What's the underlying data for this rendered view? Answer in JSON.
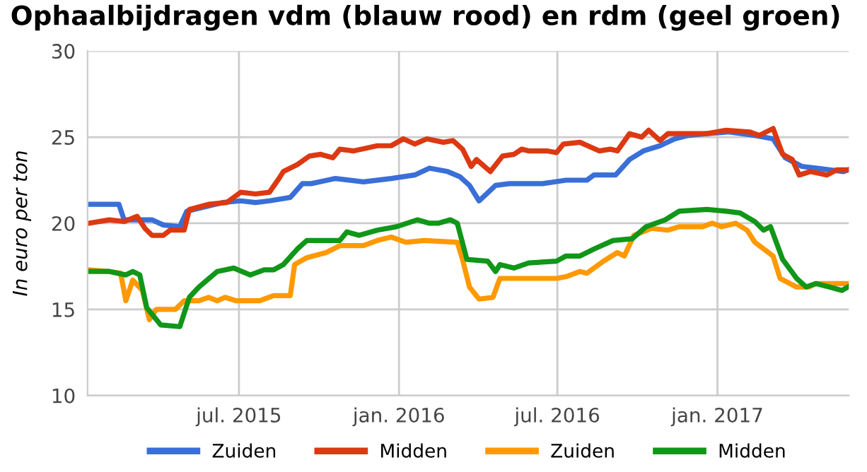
{
  "chart_data": {
    "type": "line",
    "title": "Ophaalbijdragen vdm (blauw rood) en rdm (geel groen)",
    "ylabel": "In euro per ton",
    "xlim": [
      "2015-01-08",
      "2017-06-01"
    ],
    "xticks": [
      {
        "value": "2015-07-01",
        "label": "jul. 2015"
      },
      {
        "value": "2016-01-01",
        "label": "jan. 2016"
      },
      {
        "value": "2016-07-01",
        "label": "jul. 2016"
      },
      {
        "value": "2017-01-01",
        "label": "jan. 2017"
      }
    ],
    "ylim": [
      10,
      30
    ],
    "yticks": [
      10,
      15,
      20,
      25,
      30
    ],
    "grid": true,
    "legend": "bottom",
    "marker": "none",
    "line_style": "solid",
    "series": [
      {
        "name": "Zuiden",
        "color": "#3a6fd8",
        "x": [
          "2015-01-09",
          "2015-02-02",
          "2015-02-13",
          "2015-02-19",
          "2015-03-06",
          "2015-03-23",
          "2015-04-05",
          "2015-04-24",
          "2015-05-02",
          "2015-05-27",
          "2015-06-12",
          "2015-07-03",
          "2015-07-20",
          "2015-08-05",
          "2015-08-29",
          "2015-09-12",
          "2015-09-22",
          "2015-10-20",
          "2015-11-21",
          "2015-12-23",
          "2016-01-19",
          "2016-02-05",
          "2016-02-26",
          "2016-03-11",
          "2016-03-22",
          "2016-04-02",
          "2016-04-21",
          "2016-05-07",
          "2016-05-18",
          "2016-06-14",
          "2016-07-11",
          "2016-08-04",
          "2016-08-12",
          "2016-09-06",
          "2016-09-22",
          "2016-10-08",
          "2016-10-27",
          "2016-11-13",
          "2016-11-29",
          "2016-12-20",
          "2017-01-14",
          "2017-02-13",
          "2017-03-06",
          "2017-03-20",
          "2017-04-08",
          "2017-04-24",
          "2017-05-10",
          "2017-05-26",
          "2017-05-31"
        ],
        "values": [
          21.1,
          21.1,
          21.1,
          20.2,
          20.2,
          20.2,
          19.9,
          19.8,
          20.7,
          21.0,
          21.2,
          21.3,
          21.2,
          21.3,
          21.5,
          22.3,
          22.3,
          22.6,
          22.4,
          22.6,
          22.8,
          23.2,
          23.0,
          22.7,
          22.2,
          21.3,
          22.2,
          22.3,
          22.3,
          22.3,
          22.5,
          22.5,
          22.8,
          22.8,
          23.7,
          24.2,
          24.5,
          24.9,
          25.1,
          25.2,
          25.3,
          25.1,
          24.9,
          23.8,
          23.3,
          23.2,
          23.1,
          23.0,
          23.1
        ]
      },
      {
        "name": "Midden",
        "color": "#dc3912",
        "x": [
          "2015-01-09",
          "2015-02-02",
          "2015-02-19",
          "2015-03-06",
          "2015-03-15",
          "2015-03-23",
          "2015-04-05",
          "2015-04-13",
          "2015-04-29",
          "2015-05-05",
          "2015-05-27",
          "2015-06-17",
          "2015-07-03",
          "2015-07-20",
          "2015-08-05",
          "2015-08-16",
          "2015-08-21",
          "2015-09-06",
          "2015-09-20",
          "2015-10-03",
          "2015-10-17",
          "2015-10-25",
          "2015-11-10",
          "2015-12-07",
          "2015-12-23",
          "2016-01-06",
          "2016-01-19",
          "2016-02-02",
          "2016-02-21",
          "2016-03-03",
          "2016-03-14",
          "2016-03-24",
          "2016-03-30",
          "2016-04-15",
          "2016-04-29",
          "2016-05-12",
          "2016-05-21",
          "2016-05-29",
          "2016-06-19",
          "2016-06-30",
          "2016-07-08",
          "2016-07-27",
          "2016-08-18",
          "2016-08-31",
          "2016-09-08",
          "2016-09-22",
          "2016-10-06",
          "2016-10-14",
          "2016-10-27",
          "2016-11-05",
          "2016-12-20",
          "2017-01-11",
          "2017-02-07",
          "2017-02-18",
          "2017-03-06",
          "2017-03-17",
          "2017-03-28",
          "2017-04-05",
          "2017-04-18",
          "2017-05-07",
          "2017-05-18",
          "2017-05-31"
        ],
        "values": [
          20.0,
          20.2,
          20.1,
          20.4,
          19.7,
          19.3,
          19.3,
          19.6,
          19.6,
          20.8,
          21.1,
          21.2,
          21.8,
          21.7,
          21.8,
          22.6,
          23.0,
          23.4,
          23.9,
          24.0,
          23.8,
          24.3,
          24.2,
          24.5,
          24.5,
          24.9,
          24.6,
          24.9,
          24.7,
          24.8,
          24.3,
          23.3,
          23.7,
          23.0,
          23.9,
          24.0,
          24.3,
          24.2,
          24.2,
          24.1,
          24.6,
          24.7,
          24.2,
          24.3,
          24.2,
          25.2,
          25.0,
          25.4,
          24.8,
          25.2,
          25.2,
          25.4,
          25.3,
          25.1,
          25.5,
          24.0,
          23.7,
          22.8,
          23.0,
          22.8,
          23.1,
          23.1
        ]
      },
      {
        "name": "Zuiden",
        "color": "#ff9900",
        "x": [
          "2015-01-09",
          "2015-02-02",
          "2015-02-15",
          "2015-02-21",
          "2015-03-01",
          "2015-03-12",
          "2015-03-20",
          "2015-03-28",
          "2015-04-19",
          "2015-04-29",
          "2015-05-16",
          "2015-05-27",
          "2015-06-06",
          "2015-06-15",
          "2015-06-28",
          "2015-07-25",
          "2015-07-30",
          "2015-08-10",
          "2015-08-29",
          "2015-09-03",
          "2015-09-17",
          "2015-10-09",
          "2015-10-25",
          "2015-11-21",
          "2015-12-07",
          "2015-12-23",
          "2016-01-09",
          "2016-01-30",
          "2016-03-08",
          "2016-03-14",
          "2016-03-22",
          "2016-04-02",
          "2016-04-18",
          "2016-04-26",
          "2016-05-18",
          "2016-06-30",
          "2016-07-11",
          "2016-07-27",
          "2016-08-04",
          "2016-08-23",
          "2016-09-08",
          "2016-09-16",
          "2016-09-27",
          "2016-10-17",
          "2016-11-05",
          "2016-11-18",
          "2016-12-15",
          "2016-12-26",
          "2017-01-06",
          "2017-01-22",
          "2017-02-04",
          "2017-02-13",
          "2017-03-06",
          "2017-03-14",
          "2017-04-02",
          "2017-04-16",
          "2017-04-24",
          "2017-05-31"
        ],
        "values": [
          17.3,
          17.2,
          17.1,
          15.5,
          16.7,
          16.1,
          14.4,
          15.0,
          15.0,
          15.5,
          15.5,
          15.7,
          15.5,
          15.7,
          15.5,
          15.5,
          15.6,
          15.8,
          15.8,
          17.6,
          18.0,
          18.3,
          18.7,
          18.7,
          19.0,
          19.2,
          18.9,
          19.0,
          18.9,
          17.9,
          16.3,
          15.6,
          15.7,
          16.8,
          16.8,
          16.8,
          16.9,
          17.2,
          17.1,
          17.8,
          18.3,
          18.1,
          19.3,
          19.7,
          19.6,
          19.8,
          19.8,
          20.0,
          19.8,
          20.0,
          19.6,
          18.9,
          18.1,
          16.8,
          16.3,
          16.3,
          16.5,
          16.5
        ]
      },
      {
        "name": "Midden",
        "color": "#109618",
        "x": [
          "2015-01-09",
          "2015-02-02",
          "2015-02-21",
          "2015-03-01",
          "2015-03-09",
          "2015-03-17",
          "2015-04-02",
          "2015-04-24",
          "2015-05-05",
          "2015-05-16",
          "2015-06-06",
          "2015-06-25",
          "2015-07-14",
          "2015-07-30",
          "2015-08-10",
          "2015-08-21",
          "2015-09-06",
          "2015-09-17",
          "2015-10-25",
          "2015-11-02",
          "2015-11-16",
          "2015-12-07",
          "2015-12-29",
          "2016-01-22",
          "2016-02-05",
          "2016-02-15",
          "2016-02-29",
          "2016-03-08",
          "2016-03-19",
          "2016-04-12",
          "2016-04-21",
          "2016-04-26",
          "2016-05-12",
          "2016-05-29",
          "2016-06-30",
          "2016-07-11",
          "2016-07-27",
          "2016-08-12",
          "2016-09-03",
          "2016-09-25",
          "2016-10-11",
          "2016-11-02",
          "2016-11-18",
          "2016-12-20",
          "2017-01-11",
          "2017-01-27",
          "2017-02-13",
          "2017-02-23",
          "2017-03-03",
          "2017-03-17",
          "2017-04-02",
          "2017-04-13",
          "2017-04-24",
          "2017-05-10",
          "2017-05-24",
          "2017-05-31"
        ],
        "values": [
          17.2,
          17.2,
          17.0,
          17.2,
          17.0,
          15.1,
          14.1,
          14.0,
          15.7,
          16.3,
          17.2,
          17.4,
          17.0,
          17.3,
          17.3,
          17.6,
          18.5,
          19.0,
          19.0,
          19.5,
          19.3,
          19.6,
          19.8,
          20.2,
          20.0,
          20.0,
          20.2,
          20.0,
          17.9,
          17.8,
          17.2,
          17.6,
          17.4,
          17.7,
          17.8,
          18.1,
          18.1,
          18.5,
          19.0,
          19.1,
          19.8,
          20.2,
          20.7,
          20.8,
          20.7,
          20.6,
          20.1,
          19.6,
          19.8,
          17.9,
          16.8,
          16.3,
          16.5,
          16.3,
          16.1,
          16.3
        ]
      }
    ]
  }
}
